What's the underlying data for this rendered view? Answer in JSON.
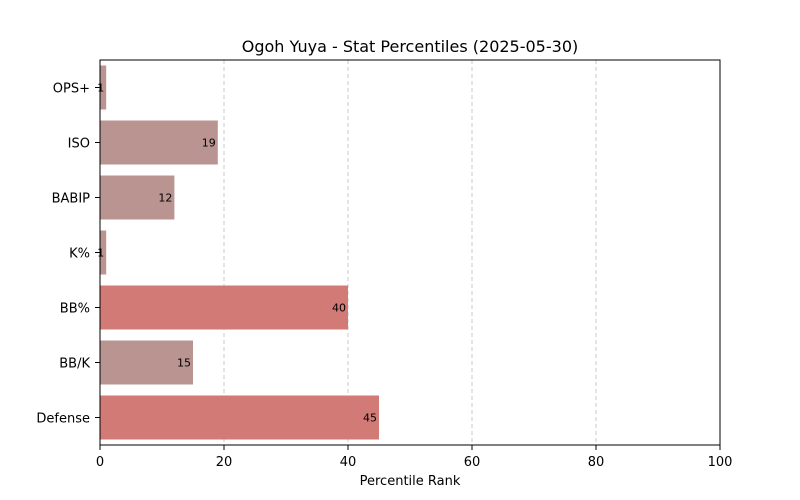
{
  "chart_data": {
    "type": "bar",
    "orientation": "horizontal",
    "title": "Ogoh Yuya - Stat Percentiles (2025-05-30)",
    "xlabel": "Percentile Rank",
    "ylabel": "",
    "xlim": [
      0,
      100
    ],
    "xticks": [
      0,
      20,
      40,
      60,
      80,
      100
    ],
    "grid": "vertical-dashed",
    "categories": [
      "OPS+",
      "ISO",
      "BABIP",
      "K%",
      "BB%",
      "BB/K",
      "Defense"
    ],
    "values": [
      1,
      19,
      12,
      1,
      40,
      15,
      45
    ],
    "colors": [
      "#b99490",
      "#b99490",
      "#b99490",
      "#b99490",
      "#d27a76",
      "#b99490",
      "#d27a76"
    ]
  }
}
